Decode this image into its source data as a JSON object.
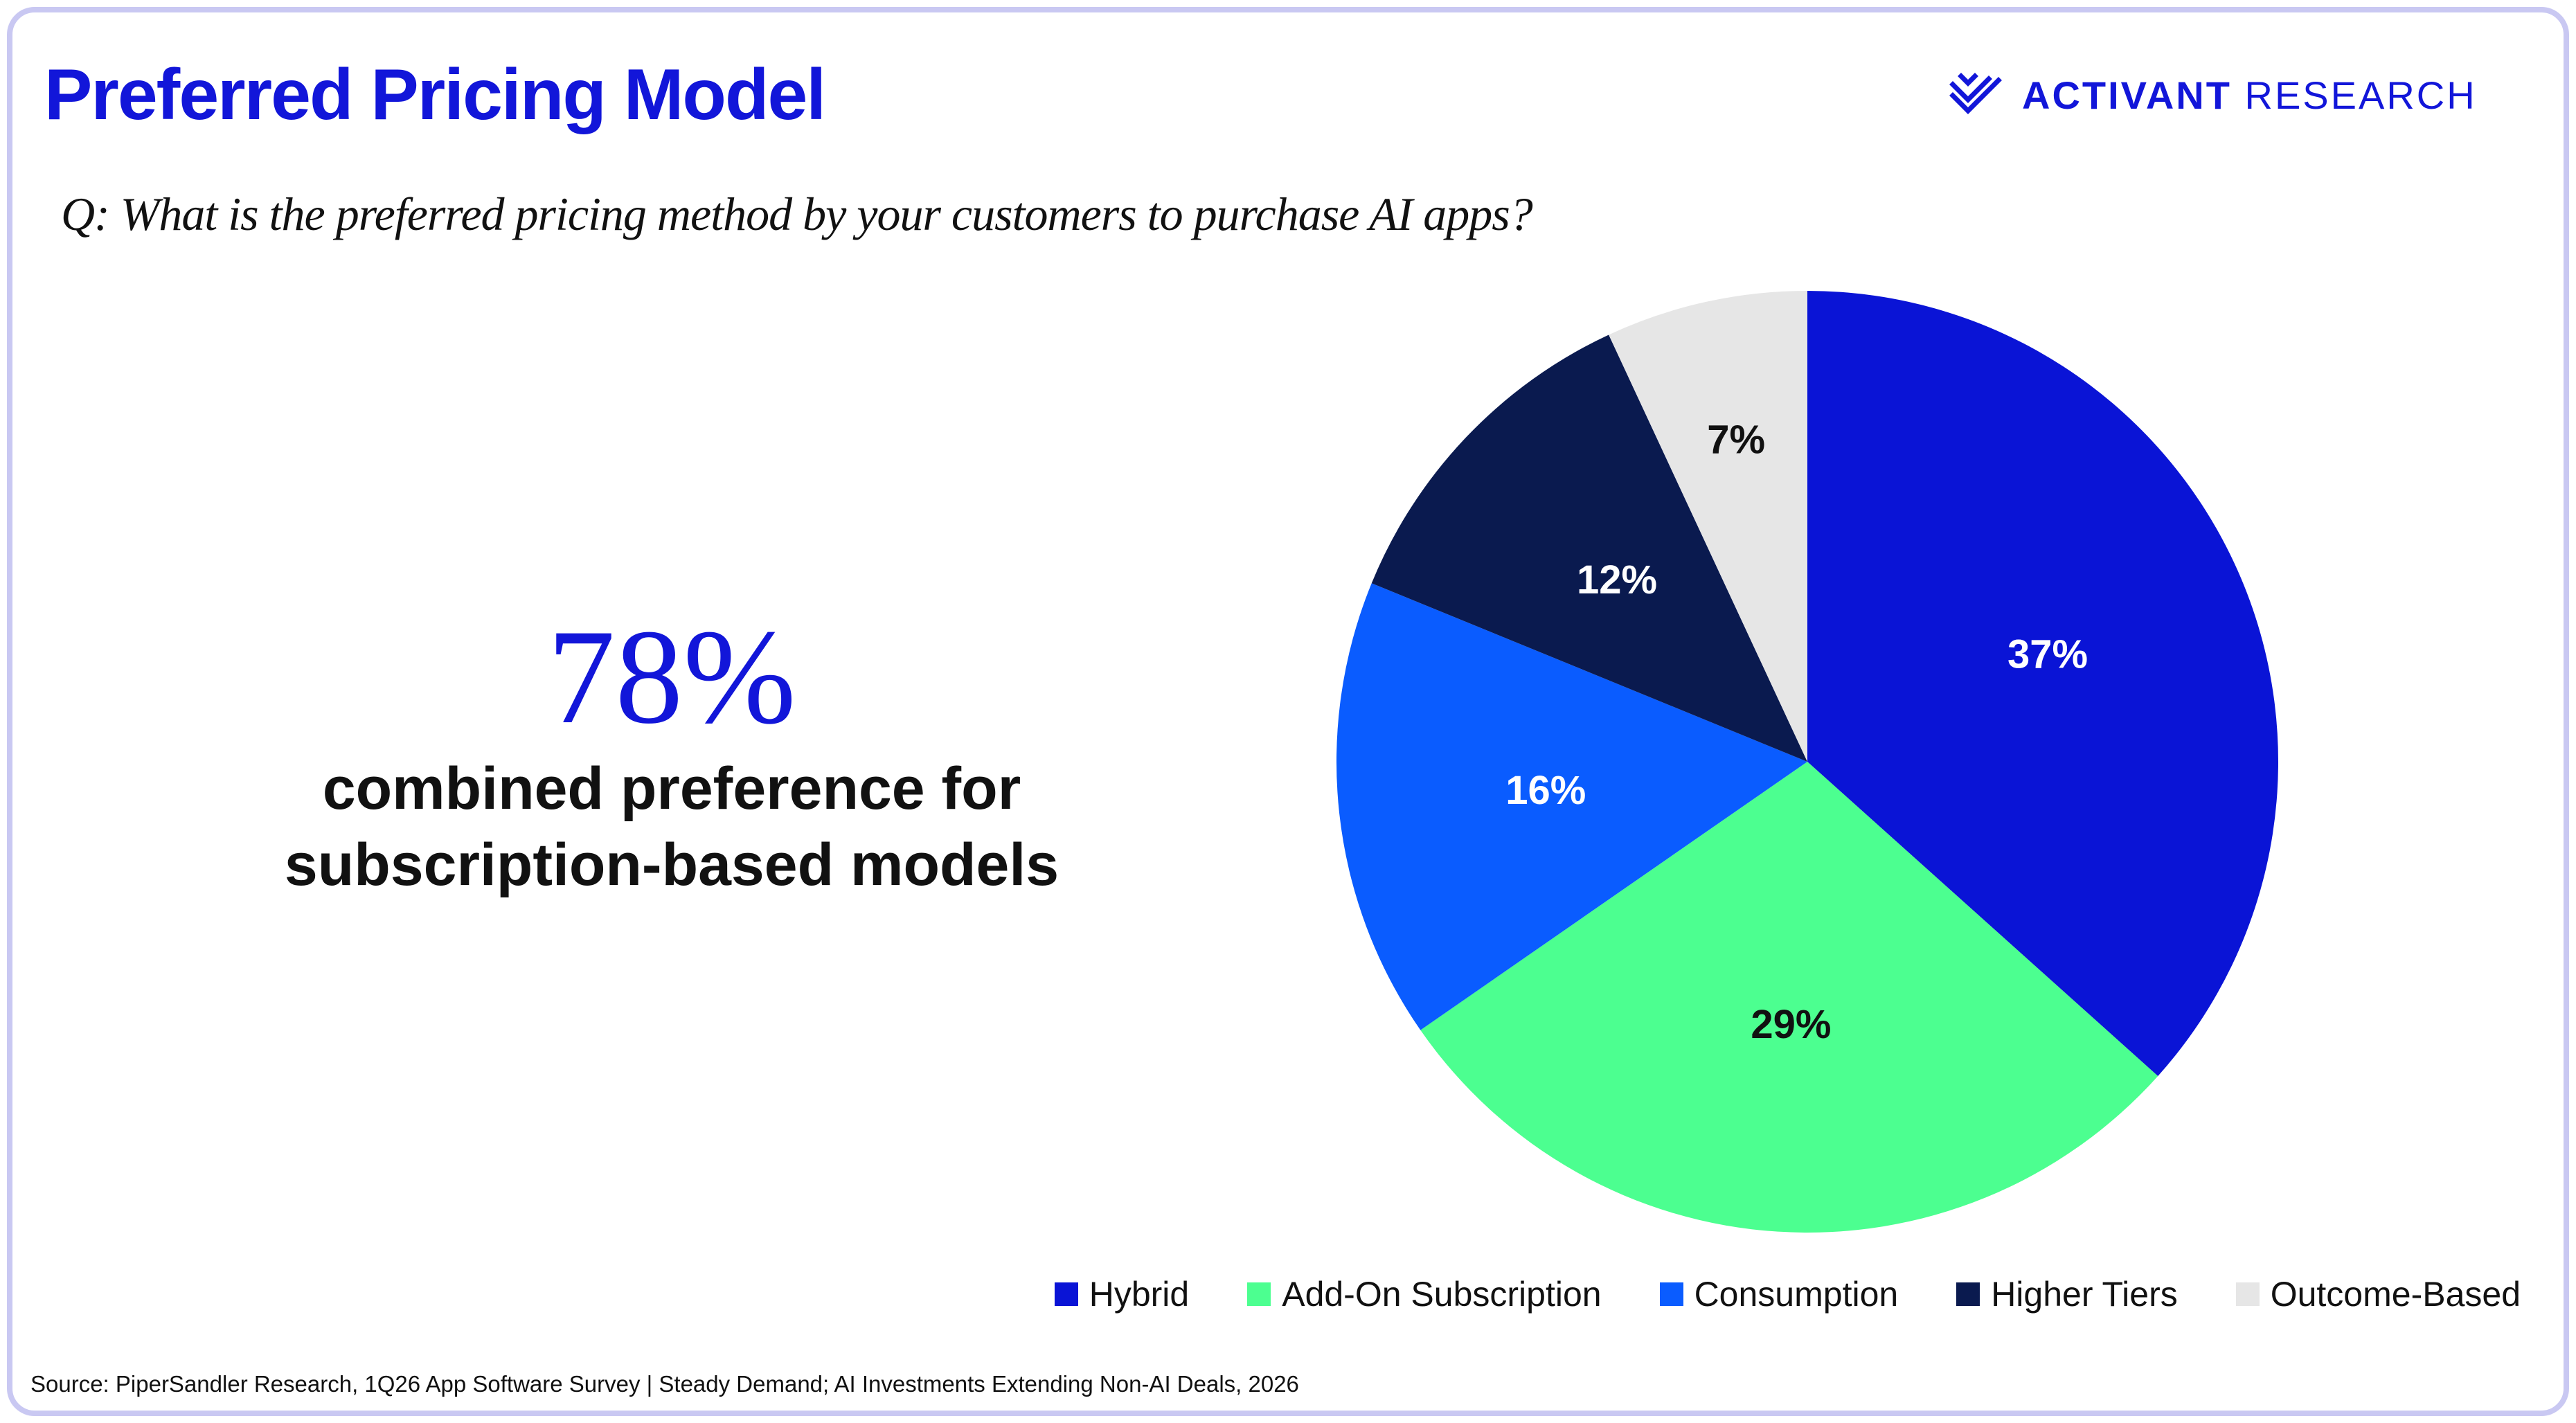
{
  "page": {
    "title": "Preferred Pricing Model",
    "logo": {
      "bold": "ACTIVANT",
      "light": "RESEARCH",
      "icon": "activant-chevrons-icon"
    },
    "question": "Q: What is the preferred pricing method by your customers to purchase AI apps?",
    "highlight": {
      "value": "78%",
      "caption_line1": "combined preference for",
      "caption_line2": "subscription-based models"
    },
    "source": "Source: PiperSandler Research, 1Q26 App Software Survey | Steady Demand; AI Investments Extending Non-AI Deals, 2026"
  },
  "colors": {
    "accent": "#1216d9",
    "frame": "#c9c8f2"
  },
  "chart_data": {
    "type": "pie",
    "title": "",
    "legend_position": "bottom-right",
    "start_angle_deg": 0,
    "direction": "clockwise",
    "slices": [
      {
        "label": "Hybrid",
        "value": 37,
        "display": "37%",
        "color": "#0a14d6",
        "text_color": "#ffffff"
      },
      {
        "label": "Add-On Subscription",
        "value": 29,
        "display": "29%",
        "color": "#4cff90",
        "text_color": "#111111"
      },
      {
        "label": "Consumption",
        "value": 16,
        "display": "16%",
        "color": "#0a5cff",
        "text_color": "#ffffff"
      },
      {
        "label": "Higher Tiers",
        "value": 12,
        "display": "12%",
        "color": "#0a1a4f",
        "text_color": "#ffffff"
      },
      {
        "label": "Outcome-Based",
        "value": 7,
        "display": "7%",
        "color": "#e6e6e6",
        "text_color": "#111111"
      }
    ]
  }
}
